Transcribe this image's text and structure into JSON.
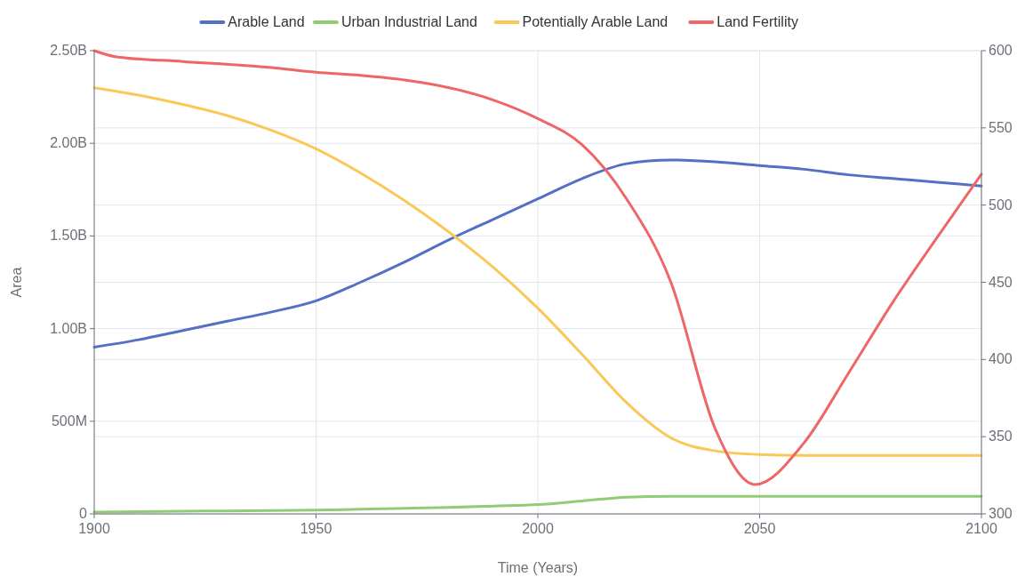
{
  "chart_data": {
    "type": "line",
    "xlabel": "Time (Years)",
    "ylabel": "Area",
    "x": [
      1900,
      1910,
      1920,
      1930,
      1940,
      1950,
      1960,
      1970,
      1980,
      1990,
      2000,
      2010,
      2020,
      2030,
      2040,
      2050,
      2060,
      2070,
      2080,
      2090,
      2100
    ],
    "series": [
      {
        "name": "Arable Land",
        "color": "#5470c6",
        "values": [
          900000000,
          940000000,
          990000000,
          1040000000,
          1090000000,
          1150000000,
          1250000000,
          1360000000,
          1480000000,
          1590000000,
          1700000000,
          1810000000,
          1890000000,
          1910000000,
          1900000000,
          1880000000,
          1860000000,
          1830000000,
          1810000000,
          1790000000,
          1770000000
        ]
      },
      {
        "name": "Urban Industrial Land",
        "color": "#91cc75",
        "values": [
          10000000,
          12000000,
          14000000,
          16000000,
          18000000,
          20000000,
          25000000,
          30000000,
          35000000,
          42000000,
          50000000,
          70000000,
          90000000,
          95000000,
          95000000,
          95000000,
          95000000,
          95000000,
          95000000,
          95000000,
          95000000
        ]
      },
      {
        "name": "Potentially Arable Land",
        "color": "#fac858",
        "values": [
          2300000000,
          2260000000,
          2210000000,
          2150000000,
          2070000000,
          1970000000,
          1840000000,
          1690000000,
          1520000000,
          1330000000,
          1110000000,
          860000000,
          600000000,
          410000000,
          340000000,
          320000000,
          315000000,
          315000000,
          315000000,
          315000000,
          315000000
        ]
      },
      {
        "name": "Land Fertility",
        "color": "#ee6666",
        "axis": "y2",
        "x": [
          1900,
          1905,
          1920,
          1940,
          1950,
          1960,
          1970,
          1980,
          1990,
          2000,
          2010,
          2020,
          2030,
          2040,
          2049,
          2060,
          2070,
          2080,
          2090,
          2100
        ],
        "values": [
          600,
          596,
          593,
          589,
          586,
          584,
          581,
          576,
          568,
          556,
          539,
          504,
          450,
          355,
          319,
          346,
          391,
          437,
          479,
          520
        ]
      }
    ],
    "xlim": [
      1900,
      2100
    ],
    "xticks": [
      1900,
      1950,
      2000,
      2050,
      2100
    ],
    "ylim": [
      0,
      2500000000
    ],
    "yticks": [
      {
        "value": 0,
        "label": "0"
      },
      {
        "value": 500000000,
        "label": "500M"
      },
      {
        "value": 1000000000,
        "label": "1.00B"
      },
      {
        "value": 1500000000,
        "label": "1.50B"
      },
      {
        "value": 2000000000,
        "label": "2.00B"
      },
      {
        "value": 2500000000,
        "label": "2.50B"
      }
    ],
    "y2lim": [
      300,
      600
    ],
    "y2ticks": [
      300,
      350,
      400,
      450,
      500,
      550,
      600
    ],
    "grid": true,
    "legend": "top",
    "line_style": "solid",
    "marker": "none"
  }
}
